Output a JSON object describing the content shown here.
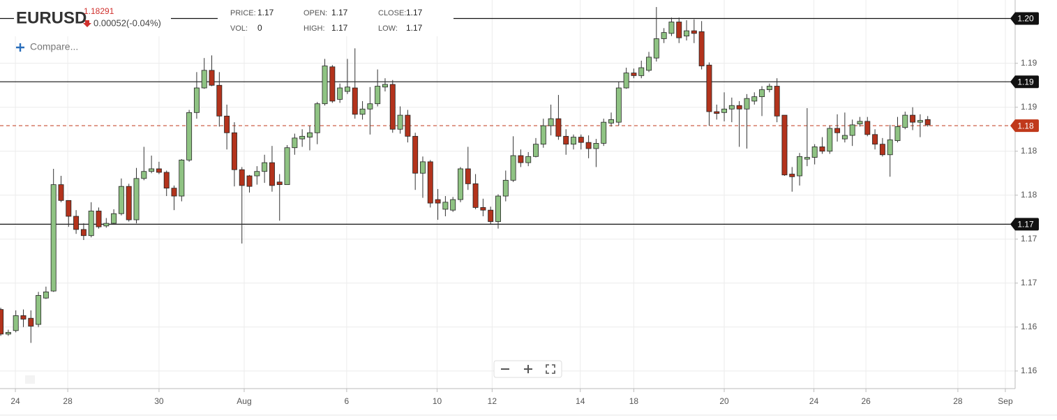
{
  "header": {
    "symbol": "EURUSD",
    "price": "1.18291",
    "change": "0.00052(-0.04%)",
    "compare": "Compare...",
    "info": [
      {
        "label": "PRICE:",
        "value": "1.17"
      },
      {
        "label": "VOL:",
        "value": "0"
      },
      {
        "label": "OPEN:",
        "value": "1.17"
      },
      {
        "label": "HIGH:",
        "value": "1.17"
      },
      {
        "label": "CLOSE:",
        "value": "1.17"
      },
      {
        "label": "LOW:",
        "value": "1.17"
      }
    ]
  },
  "chart_data": {
    "type": "candlestick",
    "up_color": "#8fc383",
    "down_color": "#b3331c",
    "x": [
      0,
      1,
      2,
      3,
      4,
      5,
      6,
      7,
      8,
      9,
      10,
      11,
      12,
      13,
      14,
      15,
      16,
      17,
      18,
      19,
      20,
      21,
      22,
      23,
      24,
      25,
      26,
      27,
      28,
      29,
      30,
      31,
      32,
      33,
      34,
      35,
      36,
      37,
      38,
      39,
      40,
      41,
      42,
      43,
      44,
      45,
      46,
      47,
      48,
      49,
      50,
      51,
      52,
      53,
      54,
      55,
      56,
      57,
      58,
      59,
      60,
      61,
      62,
      63,
      64,
      65,
      66,
      67,
      68,
      69,
      70,
      71,
      72,
      73,
      74,
      75,
      76,
      77,
      78,
      79,
      80,
      81,
      82,
      83,
      84,
      85,
      86,
      87,
      88,
      89,
      90,
      91,
      92,
      93,
      94,
      95,
      96,
      97,
      98,
      99,
      100,
      101,
      102,
      103,
      104,
      105,
      106,
      107,
      108,
      109,
      110,
      111,
      112,
      113,
      114,
      115,
      116,
      117,
      118,
      119,
      120,
      121,
      122,
      123
    ],
    "open": [
      1.162,
      1.1592,
      1.1596,
      1.1613,
      1.161,
      1.1603,
      1.1633,
      1.1641,
      1.1762,
      1.1744,
      1.1726,
      1.1711,
      1.1704,
      1.1732,
      1.1715,
      1.1718,
      1.1729,
      1.176,
      1.1722,
      1.1769,
      1.1777,
      1.178,
      1.1776,
      1.1758,
      1.1749,
      1.179,
      1.1844,
      1.1872,
      1.1892,
      1.1875,
      1.184,
      1.1821,
      1.1779,
      1.1772,
      1.1772,
      1.1777,
      1.1787,
      1.1765,
      1.1762,
      1.1804,
      1.1814,
      1.1816,
      1.1821,
      1.1854,
      1.1896,
      1.1859,
      1.1868,
      1.1872,
      1.1842,
      1.1848,
      1.1854,
      1.1873,
      1.1876,
      1.1825,
      1.1841,
      1.1817,
      1.1775,
      1.1788,
      1.1745,
      1.1734,
      1.1733,
      1.1745,
      1.178,
      1.1763,
      1.1736,
      1.1733,
      1.172,
      1.1749,
      1.1767,
      1.1795,
      1.1787,
      1.1794,
      1.1808,
      1.1829,
      1.1837,
      1.1817,
      1.1808,
      1.1816,
      1.181,
      1.1803,
      1.1809,
      1.1832,
      1.1833,
      1.1872,
      1.1889,
      1.1886,
      1.1892,
      1.1906,
      1.1928,
      1.1934,
      1.1947,
      1.1931,
      1.1937,
      1.1936,
      1.1898,
      1.1845,
      1.1844,
      1.1848,
      1.1852,
      1.1848,
      1.1857,
      1.1862,
      1.187,
      1.1874,
      1.1841,
      1.1774,
      1.1772,
      1.1791,
      1.1793,
      1.1805,
      1.18,
      1.1826,
      1.1814,
      1.1818,
      1.1831,
      1.1834,
      1.1819,
      1.1808,
      1.1796,
      1.1812,
      1.1827,
      1.1841,
      1.1833,
      1.1836
    ],
    "high": [
      1.1622,
      1.1597,
      1.1619,
      1.162,
      1.1619,
      1.164,
      1.1646,
      1.178,
      1.1772,
      1.1744,
      1.1733,
      1.1718,
      1.1742,
      1.1736,
      1.1724,
      1.1734,
      1.1769,
      1.1763,
      1.1781,
      1.1805,
      1.1795,
      1.1788,
      1.1778,
      1.1761,
      1.1791,
      1.1847,
      1.189,
      1.1906,
      1.1909,
      1.189,
      1.1853,
      1.1833,
      1.1782,
      1.1773,
      1.1783,
      1.1796,
      1.1806,
      1.1774,
      1.1807,
      1.182,
      1.1825,
      1.1829,
      1.1856,
      1.1905,
      1.1898,
      1.1877,
      1.1905,
      1.1917,
      1.1857,
      1.1873,
      1.1893,
      1.1883,
      1.1881,
      1.1851,
      1.1847,
      1.1821,
      1.1794,
      1.179,
      1.1757,
      1.1749,
      1.1748,
      1.1782,
      1.1805,
      1.1774,
      1.1746,
      1.1737,
      1.1751,
      1.1778,
      1.1817,
      1.1802,
      1.1799,
      1.1815,
      1.1837,
      1.1853,
      1.1864,
      1.1825,
      1.1819,
      1.1819,
      1.1818,
      1.1814,
      1.1837,
      1.1844,
      1.1879,
      1.1895,
      1.1894,
      1.1903,
      1.1913,
      1.1964,
      1.194,
      1.1952,
      1.1952,
      1.1949,
      1.195,
      1.1948,
      1.1901,
      1.1853,
      1.1867,
      1.1861,
      1.1857,
      1.1865,
      1.1867,
      1.1874,
      1.1877,
      1.1883,
      1.1841,
      1.1782,
      1.1798,
      1.1849,
      1.1808,
      1.1816,
      1.1829,
      1.1842,
      1.1844,
      1.1836,
      1.1839,
      1.1839,
      1.1825,
      1.1815,
      1.183,
      1.1839,
      1.1845,
      1.185,
      1.1842,
      1.184
    ],
    "low": [
      1.159,
      1.159,
      1.1594,
      1.16,
      1.1582,
      1.16,
      1.1632,
      1.164,
      1.1742,
      1.1714,
      1.1706,
      1.1699,
      1.1702,
      1.1712,
      1.1713,
      1.1717,
      1.1727,
      1.172,
      1.1718,
      1.1767,
      1.1775,
      1.1774,
      1.1749,
      1.1733,
      1.1743,
      1.1788,
      1.1837,
      1.1871,
      1.1874,
      1.1828,
      1.1802,
      1.176,
      1.1695,
      1.1753,
      1.1762,
      1.1764,
      1.1754,
      1.1721,
      1.1762,
      1.1796,
      1.1805,
      1.1801,
      1.1808,
      1.1852,
      1.1855,
      1.1855,
      1.1865,
      1.1837,
      1.1836,
      1.1819,
      1.1851,
      1.1868,
      1.1821,
      1.182,
      1.181,
      1.1756,
      1.1747,
      1.1736,
      1.1722,
      1.1726,
      1.1731,
      1.1742,
      1.1756,
      1.1734,
      1.1726,
      1.1717,
      1.1712,
      1.1743,
      1.1765,
      1.1782,
      1.1783,
      1.1793,
      1.1804,
      1.1818,
      1.1813,
      1.1796,
      1.1802,
      1.1802,
      1.1792,
      1.1782,
      1.1806,
      1.1828,
      1.1829,
      1.1871,
      1.1883,
      1.1883,
      1.189,
      1.1902,
      1.1923,
      1.1931,
      1.1923,
      1.1926,
      1.1923,
      1.1893,
      1.1829,
      1.1836,
      1.1834,
      1.1833,
      1.1805,
      1.1803,
      1.1853,
      1.184,
      1.1867,
      1.1833,
      1.1772,
      1.1754,
      1.1761,
      1.1783,
      1.1785,
      1.1797,
      1.1797,
      1.1811,
      1.181,
      1.1806,
      1.1828,
      1.1817,
      1.1802,
      1.1794,
      1.1771,
      1.181,
      1.1825,
      1.1824,
      1.1816,
      1.1828
    ],
    "close": [
      1.1592,
      1.1594,
      1.1613,
      1.1609,
      1.1601,
      1.1636,
      1.164,
      1.1762,
      1.1744,
      1.1726,
      1.1711,
      1.1704,
      1.1732,
      1.1714,
      1.1718,
      1.1729,
      1.176,
      1.1722,
      1.1769,
      1.1777,
      1.178,
      1.1776,
      1.1758,
      1.1749,
      1.179,
      1.1844,
      1.1872,
      1.1892,
      1.1875,
      1.184,
      1.1821,
      1.1779,
      1.1761,
      1.176,
      1.1777,
      1.1787,
      1.1761,
      1.1762,
      1.1804,
      1.1815,
      1.1817,
      1.1821,
      1.1854,
      1.1897,
      1.1857,
      1.1872,
      1.1873,
      1.1842,
      1.1848,
      1.1854,
      1.1874,
      1.1876,
      1.1825,
      1.1841,
      1.1817,
      1.1775,
      1.1788,
      1.1741,
      1.1741,
      1.1742,
      1.1745,
      1.178,
      1.1763,
      1.1736,
      1.1733,
      1.172,
      1.1749,
      1.1767,
      1.1795,
      1.1787,
      1.1794,
      1.1808,
      1.1829,
      1.1837,
      1.1817,
      1.1808,
      1.1816,
      1.181,
      1.1803,
      1.1809,
      1.1833,
      1.1836,
      1.1872,
      1.1889,
      1.1886,
      1.1895,
      1.1907,
      1.1928,
      1.1935,
      1.1947,
      1.1929,
      1.1937,
      1.1934,
      1.1897,
      1.1845,
      1.1843,
      1.1848,
      1.1852,
      1.1848,
      1.186,
      1.1862,
      1.187,
      1.1874,
      1.184,
      1.1773,
      1.1771,
      1.1794,
      1.1793,
      1.1805,
      1.18,
      1.1826,
      1.1821,
      1.1818,
      1.183,
      1.1834,
      1.1819,
      1.1808,
      1.1796,
      1.1813,
      1.1828,
      1.1841,
      1.1833,
      1.1835,
      1.183
    ],
    "xlim": [
      -0.1,
      134.6
    ],
    "xticks": [
      {
        "value": 1.94,
        "label": "24"
      },
      {
        "value": 8.89,
        "label": "28"
      },
      {
        "value": 21.0,
        "label": "30"
      },
      {
        "value": 32.3,
        "label": "Aug"
      },
      {
        "value": 45.9,
        "label": "6"
      },
      {
        "value": 57.9,
        "label": "10"
      },
      {
        "value": 65.2,
        "label": "12"
      },
      {
        "value": 76.9,
        "label": "14"
      },
      {
        "value": 84.0,
        "label": "18"
      },
      {
        "value": 96.0,
        "label": "20"
      },
      {
        "value": 107.9,
        "label": "24"
      },
      {
        "value": 114.8,
        "label": "26"
      },
      {
        "value": 127.0,
        "label": "28"
      },
      {
        "value": 133.3,
        "label": "Sep"
      }
    ],
    "ylim": [
      1.153,
      1.1972
    ],
    "yticks": [
      {
        "value": 1.19,
        "label": "1.19"
      },
      {
        "value": 1.185,
        "label": "1.19"
      },
      {
        "value": 1.18,
        "label": "1.18"
      },
      {
        "value": 1.175,
        "label": "1.18"
      },
      {
        "value": 1.17,
        "label": "1.17"
      },
      {
        "value": 1.165,
        "label": "1.17"
      },
      {
        "value": 1.16,
        "label": "1.16"
      },
      {
        "value": 1.155,
        "label": "1.16"
      }
    ],
    "grid": true,
    "levels": [
      {
        "value": 1.1951,
        "label": "1.20"
      },
      {
        "value": 1.1879,
        "label": "1.19"
      },
      {
        "value": 1.1717,
        "label": "1.17"
      }
    ],
    "level_color": "#111111",
    "price_line": {
      "value": 1.18291,
      "label": "1.18"
    },
    "price_color": "#c0391b"
  }
}
